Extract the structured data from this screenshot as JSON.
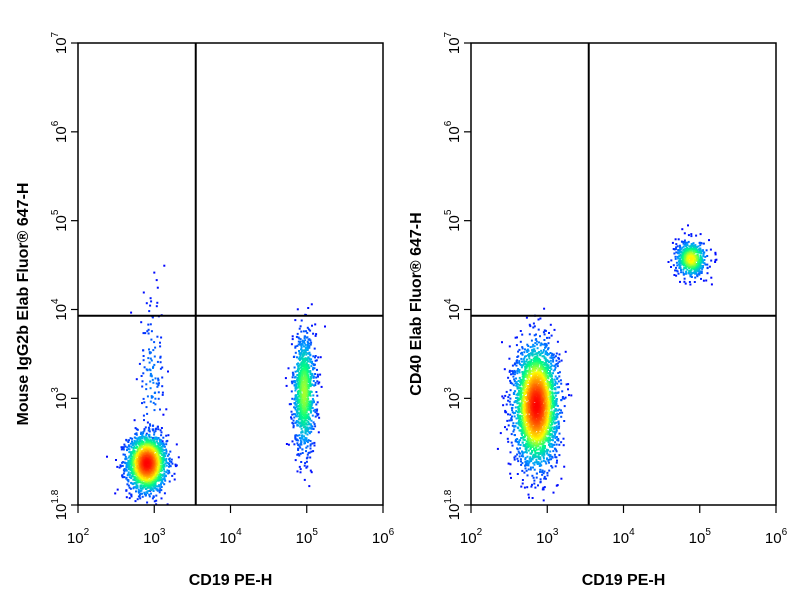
{
  "chart_data": [
    {
      "type": "scatter",
      "subtype": "flow-cytometry-density-dot-plot",
      "title": "",
      "xlabel": "CD19 PE-H",
      "ylabel": "Mouse IgG2b Elab Fluor® 647-H",
      "x_scale": "log",
      "y_scale": "log",
      "xlim": [
        100,
        1000000
      ],
      "ylim": [
        63,
        10000000
      ],
      "x_ticks": [
        {
          "base": "10",
          "exp": "2",
          "value": 100
        },
        {
          "base": "10",
          "exp": "3",
          "value": 1000
        },
        {
          "base": "10",
          "exp": "4",
          "value": 10000
        },
        {
          "base": "10",
          "exp": "5",
          "value": 100000
        },
        {
          "base": "10",
          "exp": "6",
          "value": 1000000
        }
      ],
      "y_ticks": [
        {
          "base": "10",
          "exp": "1.8",
          "value": 63
        },
        {
          "base": "10",
          "exp": "3",
          "value": 1000
        },
        {
          "base": "10",
          "exp": "4",
          "value": 10000
        },
        {
          "base": "10",
          "exp": "5",
          "value": 100000
        },
        {
          "base": "10",
          "exp": "6",
          "value": 1000000
        },
        {
          "base": "10",
          "exp": "7",
          "value": 10000000
        }
      ],
      "quadrant_gate": {
        "x": 3500,
        "y": 8500
      },
      "populations": [
        {
          "cx": 780,
          "cy": 190,
          "sx_dec": 0.13,
          "sy_dec": 0.16,
          "n": 1800,
          "peak_density": 1.0
        },
        {
          "cx": 90000,
          "cy": 1200,
          "sx_dec": 0.075,
          "sy_dec": 0.34,
          "n": 1000,
          "peak_density": 0.45
        },
        {
          "cx": 900,
          "cy": 1700,
          "sx_dec": 0.09,
          "sy_dec": 0.45,
          "n": 140,
          "peak_density": 0.1
        }
      ],
      "grid": false,
      "legend": "none"
    },
    {
      "type": "scatter",
      "subtype": "flow-cytometry-density-dot-plot",
      "title": "",
      "xlabel": "CD19 PE-H",
      "ylabel": "CD40 Elab Fluor® 647-H",
      "x_scale": "log",
      "y_scale": "log",
      "xlim": [
        100,
        1000000
      ],
      "ylim": [
        63,
        10000000
      ],
      "x_ticks": [
        {
          "base": "10",
          "exp": "2",
          "value": 100
        },
        {
          "base": "10",
          "exp": "3",
          "value": 1000
        },
        {
          "base": "10",
          "exp": "4",
          "value": 10000
        },
        {
          "base": "10",
          "exp": "5",
          "value": 100000
        },
        {
          "base": "10",
          "exp": "6",
          "value": 1000000
        }
      ],
      "y_ticks": [
        {
          "base": "10",
          "exp": "1.8",
          "value": 63
        },
        {
          "base": "10",
          "exp": "3",
          "value": 1000
        },
        {
          "base": "10",
          "exp": "4",
          "value": 10000
        },
        {
          "base": "10",
          "exp": "5",
          "value": 100000
        },
        {
          "base": "10",
          "exp": "6",
          "value": 1000000
        },
        {
          "base": "10",
          "exp": "7",
          "value": 10000000
        }
      ],
      "quadrant_gate": {
        "x": 3500,
        "y": 8500
      },
      "populations": [
        {
          "cx": 700,
          "cy": 850,
          "sx_dec": 0.14,
          "sy_dec": 0.33,
          "n": 3000,
          "peak_density": 1.0
        },
        {
          "cx": 75000,
          "cy": 38000,
          "sx_dec": 0.1,
          "sy_dec": 0.1,
          "n": 600,
          "peak_density": 0.55
        }
      ],
      "grid": false,
      "legend": "none"
    }
  ],
  "colors": {
    "density_scale": [
      "#0000ff",
      "#00a0ff",
      "#00ff80",
      "#ffff00",
      "#ff8000",
      "#ff0000"
    ],
    "frame": "#000000"
  }
}
